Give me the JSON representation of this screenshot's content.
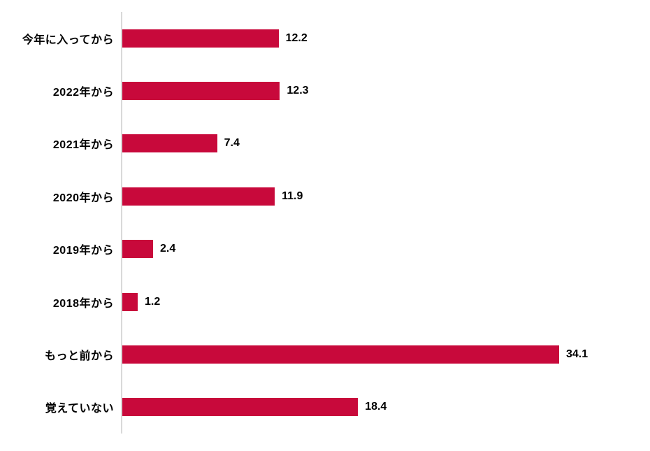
{
  "chart_data": {
    "type": "bar",
    "orientation": "horizontal",
    "title": "",
    "xlabel": "",
    "ylabel": "",
    "categories": [
      "今年に入ってから",
      "2022年から",
      "2021年から",
      "2020年から",
      "2019年から",
      "2018年から",
      "もっと前から",
      "覚えていない"
    ],
    "values": [
      12.2,
      12.3,
      7.4,
      11.9,
      2.4,
      1.2,
      34.1,
      18.4
    ],
    "value_decimals": 1,
    "xlim": [
      0,
      34.1
    ],
    "grid": false,
    "legend": false,
    "value_labels": "end-of-bar",
    "colors": {
      "bar": "#c8093b",
      "axis_line": "#d9d9d9",
      "category_text": "#000000",
      "value_text": "#000000",
      "background": "#ffffff"
    }
  }
}
